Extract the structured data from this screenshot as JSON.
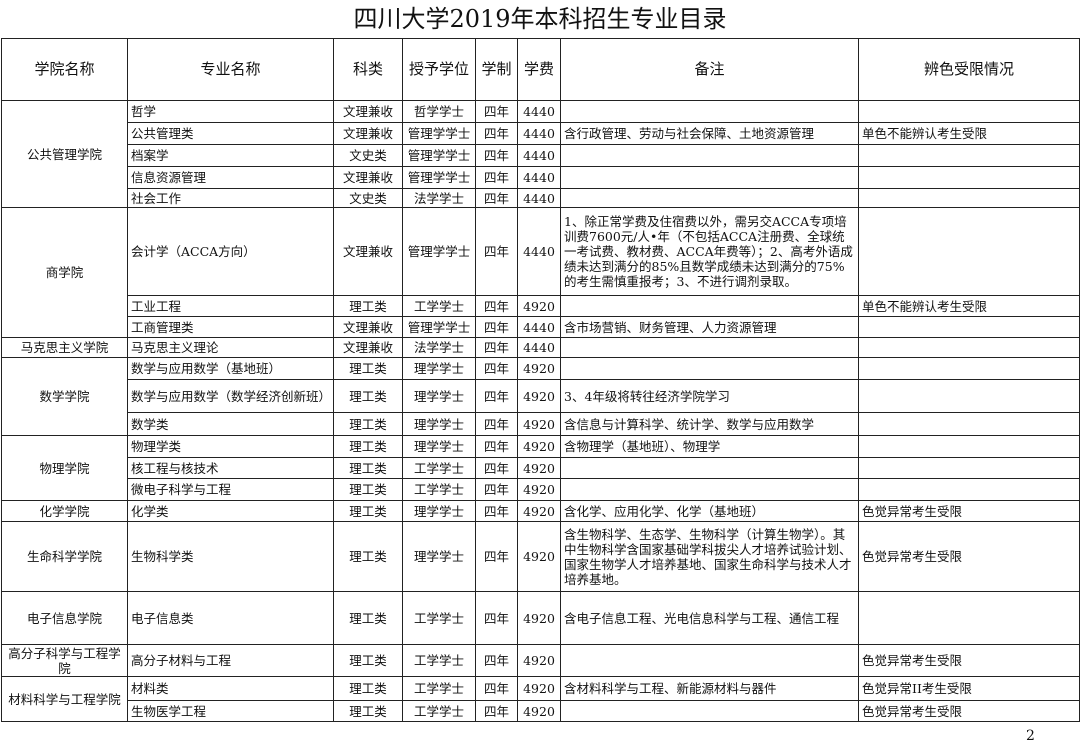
{
  "title": "四川大学2019年本科招生专业目录",
  "headers": [
    "学院名称",
    "专业名称",
    "科类",
    "授予学位",
    "学制",
    "学费",
    "备注",
    "辨色受限情况"
  ],
  "colleges": [
    {
      "name": "公共管理学院",
      "majors": [
        {
          "major": "哲学",
          "category": "文理兼收",
          "degree": "哲学学士",
          "duration": "四年",
          "fee": "4440",
          "note": "",
          "color_limit": ""
        },
        {
          "major": "公共管理类",
          "category": "文理兼收",
          "degree": "管理学学士",
          "duration": "四年",
          "fee": "4440",
          "note": "含行政管理、劳动与社会保障、土地资源管理",
          "color_limit": "单色不能辨认考生受限"
        },
        {
          "major": "档案学",
          "category": "文史类",
          "degree": "管理学学士",
          "duration": "四年",
          "fee": "4440",
          "note": "",
          "color_limit": ""
        },
        {
          "major": "信息资源管理",
          "category": "文理兼收",
          "degree": "管理学学士",
          "duration": "四年",
          "fee": "4440",
          "note": "",
          "color_limit": ""
        },
        {
          "major": "社会工作",
          "category": "文史类",
          "degree": "法学学士",
          "duration": "四年",
          "fee": "4440",
          "note": "",
          "color_limit": ""
        }
      ]
    },
    {
      "name": "商学院",
      "majors": [
        {
          "major": "会计学（ACCA方向）",
          "category": "文理兼收",
          "degree": "管理学学士",
          "duration": "四年",
          "fee": "4440",
          "note": "1、除正常学费及住宿费以外，需另交ACCA专项培训费7600元/人•年（不包括ACCA注册费、全球统一考试费、教材费、ACCA年费等）；2、高考外语成绩未达到满分的85%且数学成绩未达到满分的75%的考生需慎重报考；3、不进行调剂录取。",
          "color_limit": ""
        },
        {
          "major": "工业工程",
          "category": "理工类",
          "degree": "工学学士",
          "duration": "四年",
          "fee": "4920",
          "note": "",
          "color_limit": "单色不能辨认考生受限"
        },
        {
          "major": "工商管理类",
          "category": "文理兼收",
          "degree": "管理学学士",
          "duration": "四年",
          "fee": "4440",
          "note": "含市场营销、财务管理、人力资源管理",
          "color_limit": ""
        }
      ]
    },
    {
      "name": "马克思主义学院",
      "majors": [
        {
          "major": "马克思主义理论",
          "category": "文理兼收",
          "degree": "法学学士",
          "duration": "四年",
          "fee": "4440",
          "note": "",
          "color_limit": ""
        }
      ]
    },
    {
      "name": "数学学院",
      "majors": [
        {
          "major": "数学与应用数学（基地班）",
          "category": "理工类",
          "degree": "理学学士",
          "duration": "四年",
          "fee": "4920",
          "note": "",
          "color_limit": ""
        },
        {
          "major": "数学与应用数学（数学经济创新班）",
          "category": "理工类",
          "degree": "理学学士",
          "duration": "四年",
          "fee": "4920",
          "note": "3、4年级将转往经济学院学习",
          "color_limit": ""
        },
        {
          "major": "数学类",
          "category": "理工类",
          "degree": "理学学士",
          "duration": "四年",
          "fee": "4920",
          "note": "含信息与计算科学、统计学、数学与应用数学",
          "color_limit": ""
        }
      ]
    },
    {
      "name": "物理学院",
      "majors": [
        {
          "major": "物理学类",
          "category": "理工类",
          "degree": "理学学士",
          "duration": "四年",
          "fee": "4920",
          "note": "含物理学（基地班）、物理学",
          "color_limit": ""
        },
        {
          "major": "核工程与核技术",
          "category": "理工类",
          "degree": "工学学士",
          "duration": "四年",
          "fee": "4920",
          "note": "",
          "color_limit": ""
        },
        {
          "major": "微电子科学与工程",
          "category": "理工类",
          "degree": "工学学士",
          "duration": "四年",
          "fee": "4920",
          "note": "",
          "color_limit": ""
        }
      ]
    },
    {
      "name": "化学学院",
      "majors": [
        {
          "major": "化学类",
          "category": "理工类",
          "degree": "理学学士",
          "duration": "四年",
          "fee": "4920",
          "note": "含化学、应用化学、化学（基地班）",
          "color_limit": "色觉异常考生受限"
        }
      ]
    },
    {
      "name": "生命科学学院",
      "majors": [
        {
          "major": "生物科学类",
          "category": "理工类",
          "degree": "理学学士",
          "duration": "四年",
          "fee": "4920",
          "note": "含生物科学、生态学、生物科学（计算生物学）。其中生物科学含国家基础学科拔尖人才培养试验计划、国家生物学人才培养基地、国家生命科学与技术人才培养基地。",
          "color_limit": "色觉异常考生受限"
        }
      ]
    },
    {
      "name": "电子信息学院",
      "majors": [
        {
          "major": "电子信息类",
          "category": "理工类",
          "degree": "工学学士",
          "duration": "四年",
          "fee": "4920",
          "note": "含电子信息工程、光电信息科学与工程、通信工程",
          "color_limit": ""
        }
      ]
    },
    {
      "name": "高分子科学与工程学院",
      "majors": [
        {
          "major": "高分子材料与工程",
          "category": "理工类",
          "degree": "工学学士",
          "duration": "四年",
          "fee": "4920",
          "note": "",
          "color_limit": "色觉异常考生受限"
        }
      ]
    },
    {
      "name": "材料科学与工程学院",
      "majors": [
        {
          "major": "材料类",
          "category": "理工类",
          "degree": "工学学士",
          "duration": "四年",
          "fee": "4920",
          "note": "含材料科学与工程、新能源材料与器件",
          "color_limit": "色觉异常II考生受限"
        },
        {
          "major": "生物医学工程",
          "category": "理工类",
          "degree": "工学学士",
          "duration": "四年",
          "fee": "4920",
          "note": "",
          "color_limit": "色觉异常考生受限"
        }
      ]
    }
  ],
  "page_number": "2"
}
